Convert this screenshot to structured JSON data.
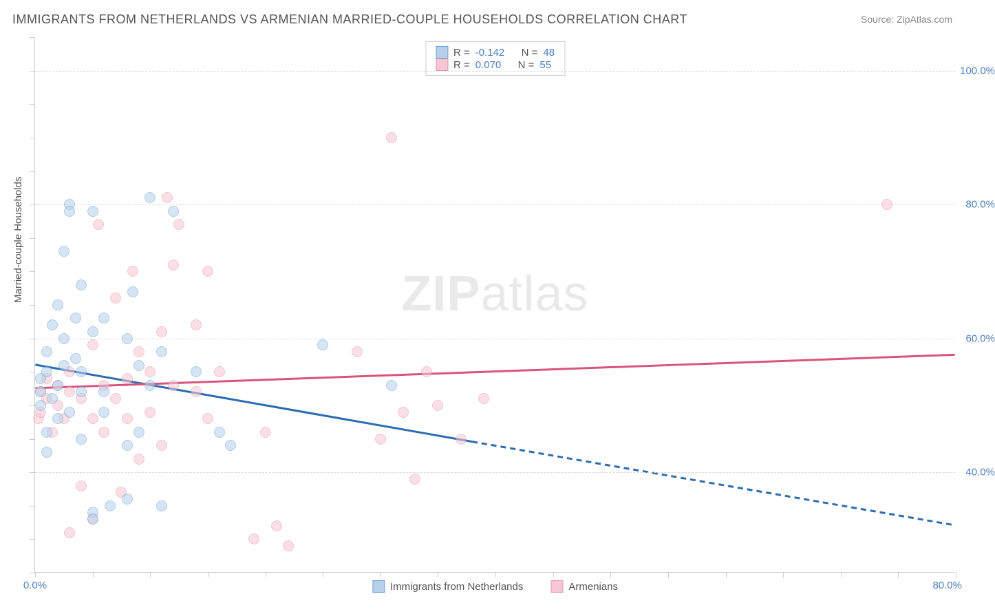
{
  "title": "IMMIGRANTS FROM NETHERLANDS VS ARMENIAN MARRIED-COUPLE HOUSEHOLDS CORRELATION CHART",
  "source": "Source: ZipAtlas.com",
  "watermark_a": "ZIP",
  "watermark_b": "atlas",
  "ylabel": "Married-couple Households",
  "xaxis": {
    "min": 0,
    "max": 80,
    "tick_positions": [
      0,
      5,
      10,
      15,
      20,
      25,
      30,
      35,
      40,
      45,
      50,
      55,
      60,
      65,
      70,
      75,
      80
    ],
    "first_label": "0.0%",
    "last_label": "80.0%"
  },
  "yaxis": {
    "min": 25,
    "max": 105,
    "gridlines": [
      40,
      60,
      80,
      100
    ],
    "labels": [
      "40.0%",
      "60.0%",
      "80.0%",
      "100.0%"
    ],
    "minor_ticks": [
      25,
      30,
      35,
      40,
      45,
      50,
      55,
      60,
      65,
      70,
      75,
      80,
      85,
      90,
      95,
      100,
      105
    ]
  },
  "series": {
    "blue": {
      "label": "Immigrants from Netherlands",
      "R": "-0.142",
      "N": "48",
      "fill": "#b6d0ea",
      "stroke": "#6fa3d6",
      "line_color": "#2b6cb0",
      "trend": {
        "x1": 0,
        "y1": 56,
        "x2_solid": 38,
        "y2_solid": 44.5,
        "x2": 80,
        "y2": 32
      },
      "points": [
        [
          0.5,
          54
        ],
        [
          0.5,
          52
        ],
        [
          0.5,
          50
        ],
        [
          1,
          55
        ],
        [
          1,
          58
        ],
        [
          1,
          46
        ],
        [
          1,
          43
        ],
        [
          1.5,
          62
        ],
        [
          1.5,
          51
        ],
        [
          2,
          53
        ],
        [
          2,
          48
        ],
        [
          2,
          65
        ],
        [
          2.5,
          60
        ],
        [
          2.5,
          56
        ],
        [
          2.5,
          73
        ],
        [
          3,
          49
        ],
        [
          3,
          80
        ],
        [
          3,
          79
        ],
        [
          3.5,
          57
        ],
        [
          3.5,
          63
        ],
        [
          4,
          52
        ],
        [
          4,
          45
        ],
        [
          4,
          68
        ],
        [
          4,
          55
        ],
        [
          5,
          61
        ],
        [
          5,
          79
        ],
        [
          5,
          34
        ],
        [
          5,
          33
        ],
        [
          6,
          63
        ],
        [
          6,
          52
        ],
        [
          6,
          49
        ],
        [
          6.5,
          35
        ],
        [
          8,
          60
        ],
        [
          8,
          44
        ],
        [
          8,
          36
        ],
        [
          8.5,
          67
        ],
        [
          9,
          56
        ],
        [
          9,
          46
        ],
        [
          10,
          53
        ],
        [
          10,
          81
        ],
        [
          11,
          58
        ],
        [
          11,
          35
        ],
        [
          12,
          79
        ],
        [
          14,
          55
        ],
        [
          16,
          46
        ],
        [
          17,
          44
        ],
        [
          25,
          59
        ],
        [
          31,
          53
        ]
      ]
    },
    "pink": {
      "label": "Armenians",
      "R": "0.070",
      "N": "55",
      "fill": "#f7c8d3",
      "stroke": "#e298ab",
      "line_color": "#d9547a",
      "trend": {
        "x1": 0,
        "y1": 52.5,
        "x2": 80,
        "y2": 57.5
      },
      "points": [
        [
          0.3,
          48
        ],
        [
          0.5,
          52
        ],
        [
          0.5,
          49
        ],
        [
          1,
          51
        ],
        [
          1,
          54
        ],
        [
          1.5,
          46
        ],
        [
          2,
          50
        ],
        [
          2,
          53
        ],
        [
          2.5,
          48
        ],
        [
          3,
          52
        ],
        [
          3,
          55
        ],
        [
          3,
          31
        ],
        [
          4,
          51
        ],
        [
          4,
          38
        ],
        [
          5,
          59
        ],
        [
          5,
          48
        ],
        [
          5,
          33
        ],
        [
          5.5,
          77
        ],
        [
          6,
          53
        ],
        [
          6,
          46
        ],
        [
          7,
          66
        ],
        [
          7,
          51
        ],
        [
          7.5,
          37
        ],
        [
          8,
          54
        ],
        [
          8,
          48
        ],
        [
          8.5,
          70
        ],
        [
          9,
          58
        ],
        [
          9,
          42
        ],
        [
          10,
          55
        ],
        [
          10,
          49
        ],
        [
          11,
          61
        ],
        [
          11,
          44
        ],
        [
          11.5,
          81
        ],
        [
          12,
          53
        ],
        [
          12,
          71
        ],
        [
          12.5,
          77
        ],
        [
          14,
          52
        ],
        [
          14,
          62
        ],
        [
          15,
          48
        ],
        [
          15,
          70
        ],
        [
          16,
          55
        ],
        [
          19,
          30
        ],
        [
          20,
          46
        ],
        [
          21,
          32
        ],
        [
          22,
          29
        ],
        [
          28,
          58
        ],
        [
          30,
          45
        ],
        [
          31,
          90
        ],
        [
          32,
          49
        ],
        [
          33,
          39
        ],
        [
          34,
          55
        ],
        [
          35,
          50
        ],
        [
          37,
          45
        ],
        [
          39,
          51
        ],
        [
          74,
          80
        ]
      ]
    }
  },
  "marker_radius": 8,
  "marker_opacity": 0.55,
  "legend": {
    "r_label": "R =",
    "n_label": "N ="
  }
}
